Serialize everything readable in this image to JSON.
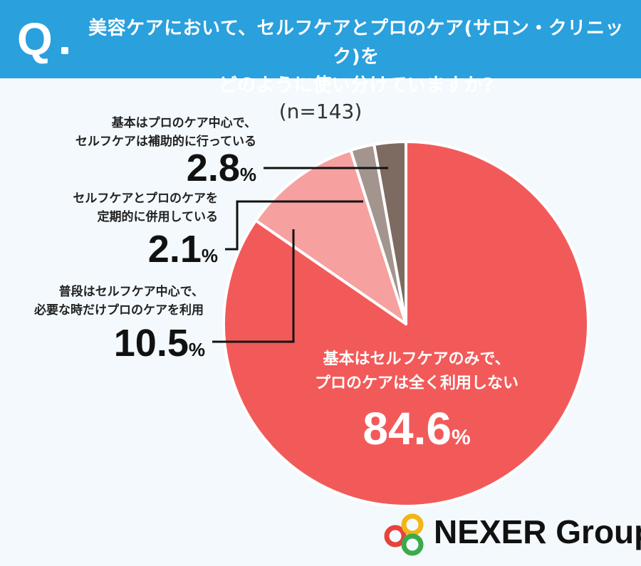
{
  "header": {
    "q_mark": "Q",
    "question_line1": "美容ケアにおいて、セルフケアとプロのケア(サロン・クリニック)を",
    "question_line2": "どのように使い分けていますか?"
  },
  "sample_size": "(n=143)",
  "chart_data": {
    "type": "pie",
    "title": "美容ケアにおいて、セルフケアとプロのケア(サロン・クリニック)をどのように使い分けていますか?",
    "note": "(n=143)",
    "unit": "%",
    "slices": [
      {
        "label_line1": "基本はセルフケアのみで、",
        "label_line2": "プロのケアは全く利用しない",
        "value": "84.6",
        "color": "#f25a5a"
      },
      {
        "label_line1": "普段はセルフケア中心で、",
        "label_line2": "必要な時だけプロのケアを利用",
        "value": "10.5",
        "color": "#f6a0a0"
      },
      {
        "label_line1": "セルフケアとプロのケアを",
        "label_line2": "定期的に併用している",
        "value": "2.1",
        "color": "#a3958e"
      },
      {
        "label_line1": "基本はプロのケア中心で、",
        "label_line2": "セルフケアは補助的に行っている",
        "value": "2.8",
        "color": "#7d6b62"
      }
    ]
  },
  "logo": {
    "text": "NEXER Group",
    "colors": [
      "#e8413c",
      "#f2b515",
      "#3bab4a"
    ]
  }
}
